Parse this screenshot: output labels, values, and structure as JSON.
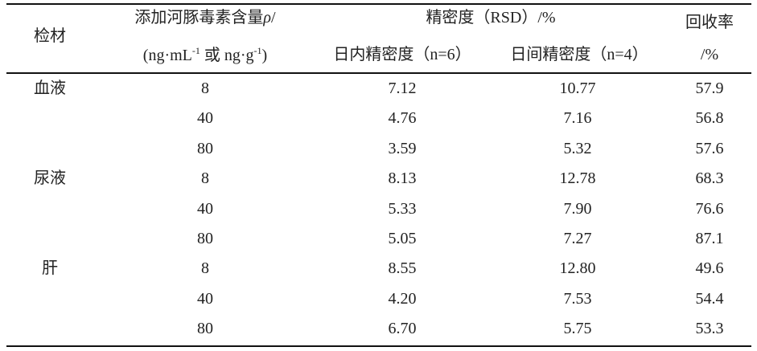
{
  "header": {
    "sample": "检材",
    "spiked": {
      "label": "添加河豚毒素含量",
      "symbol": "ρ",
      "suffix": "/"
    },
    "spiked_unit": [
      "(ng·mL",
      "-1",
      " 或 ng·g",
      "-1",
      ")"
    ],
    "precision": "精密度（RSD）/%",
    "intra": "日内精密度（n=6）",
    "inter": "日间精密度（n=4）",
    "recovery": "回收率",
    "recovery_unit": "/%"
  },
  "rows": [
    {
      "sample": "血液",
      "spiked": "8",
      "intra": "7.12",
      "inter": "10.77",
      "recovery": "57.9"
    },
    {
      "spiked": "40",
      "intra": "4.76",
      "inter": "7.16",
      "recovery": "56.8"
    },
    {
      "spiked": "80",
      "intra": "3.59",
      "inter": "5.32",
      "recovery": "57.6"
    },
    {
      "sample": "尿液",
      "spiked": "8",
      "intra": "8.13",
      "inter": "12.78",
      "recovery": "68.3"
    },
    {
      "spiked": "40",
      "intra": "5.33",
      "inter": "7.90",
      "recovery": "76.6"
    },
    {
      "spiked": "80",
      "intra": "5.05",
      "inter": "7.27",
      "recovery": "87.1"
    },
    {
      "sample": "肝",
      "spiked": "8",
      "intra": "8.55",
      "inter": "12.80",
      "recovery": "49.6"
    },
    {
      "spiked": "40",
      "intra": "4.20",
      "inter": "7.53",
      "recovery": "54.4"
    },
    {
      "spiked": "80",
      "intra": "6.70",
      "inter": "5.75",
      "recovery": "53.3"
    }
  ]
}
